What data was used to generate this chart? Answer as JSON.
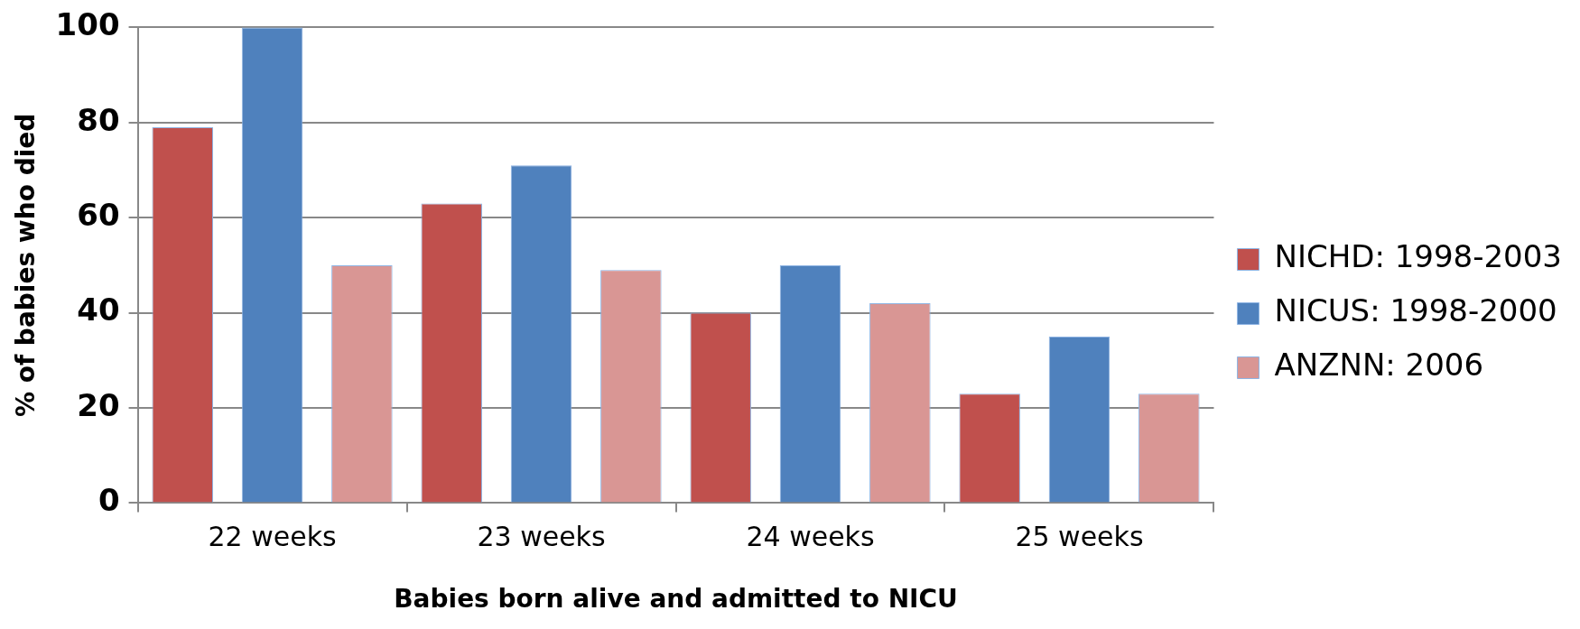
{
  "chart_data": {
    "type": "bar",
    "xlabel": "Babies born alive and admitted to NICU",
    "ylabel": "% of babies who died",
    "categories": [
      "22 weeks",
      "23 weeks",
      "24 weeks",
      "25 weeks"
    ],
    "series": [
      {
        "name": "NICHD: 1998-2003",
        "color": "#c0504d",
        "values": [
          79,
          63,
          40,
          23
        ]
      },
      {
        "name": "NICUS: 1998-2000",
        "color": "#4f81bd",
        "values": [
          100,
          71,
          50,
          35
        ]
      },
      {
        "name": "ANZNN: 2006",
        "color": "#d99694",
        "values": [
          50,
          49,
          42,
          23
        ]
      }
    ],
    "ylim": [
      0,
      100
    ],
    "yticks": [
      0,
      20,
      40,
      60,
      80,
      100
    ],
    "grid": "y",
    "legend": "right"
  }
}
